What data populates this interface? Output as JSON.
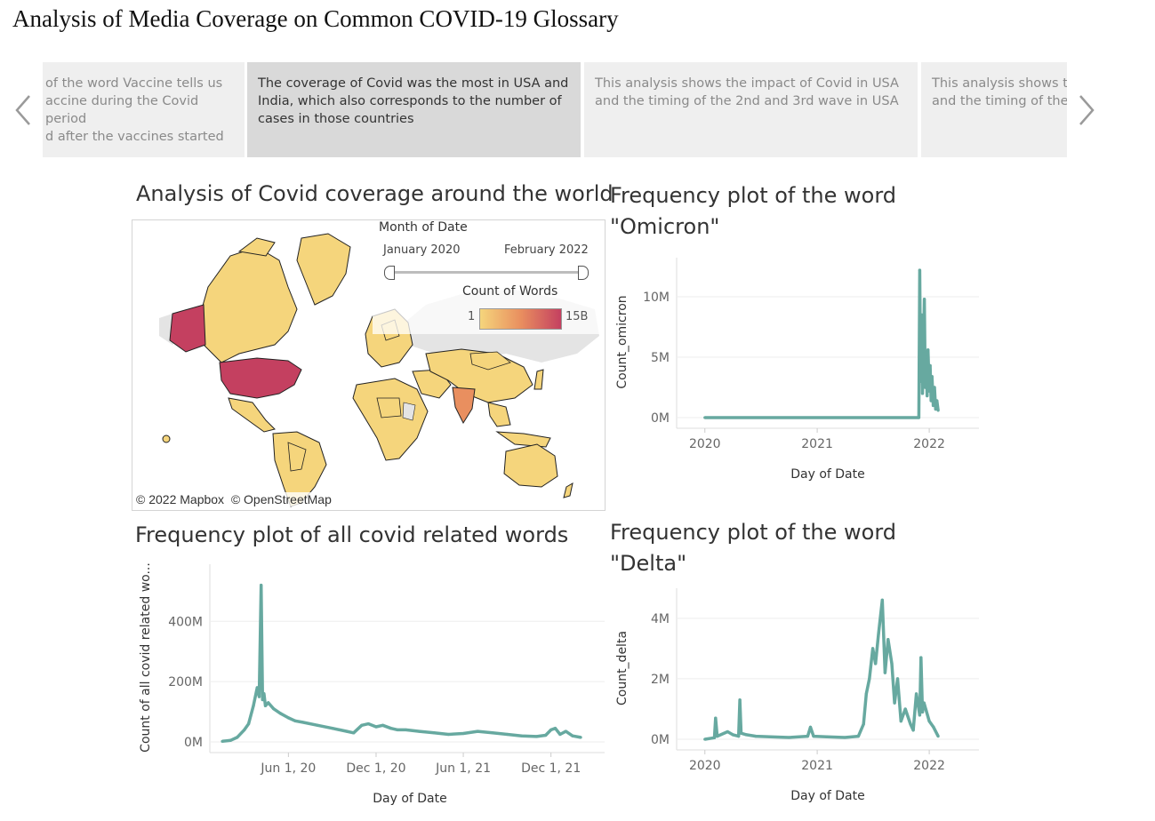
{
  "page": {
    "title": "Analysis of Media Coverage on Common COVID-19 Glossary"
  },
  "carousel": {
    "cards": [
      {
        "text": "of the word Vaccine tells us\naccine during the Covid period\nd after the vaccines started"
      },
      {
        "text": "The coverage of Covid was the most in USA and\nIndia, which also corresponds to the number of\ncases in those countries"
      },
      {
        "text": "This analysis shows the impact of Covid in USA\nand the timing of the 2nd and 3rd wave in USA"
      },
      {
        "text": "This analysis shows th\nand the timing of the"
      }
    ],
    "prev_icon": "chevron-left-icon",
    "next_icon": "chevron-right-icon"
  },
  "map_panel": {
    "title": "Analysis of Covid coverage around the world",
    "filter_label": "Month of Date",
    "range_start": "January 2020",
    "range_end": "February 2022",
    "legend_title": "Count of Words",
    "legend_min": "1",
    "legend_max": "15B",
    "attribution": "© 2022 Mapbox  © OpenStreetMap",
    "colors": {
      "low": "#f5d57c",
      "mid": "#e98f5f",
      "high": "#c44060",
      "no_data": "#e4e4e4"
    }
  },
  "omicron_panel": {
    "title": "Frequency plot of the word\n\"Omicron\"",
    "chart_data": {
      "type": "line",
      "title": "Frequency plot of the word \"Omicron\"",
      "xlabel": "Day of Date",
      "ylabel": "Count_omicron",
      "x_ticks": [
        "2020",
        "2021",
        "2022"
      ],
      "y_ticks": [
        "0M",
        "5M",
        "10M"
      ],
      "ylim": [
        0,
        12500000
      ],
      "xlim": [
        "2019-10-01",
        "2022-04-15"
      ],
      "color": "#67a9a0",
      "x": [
        "2020-01-01",
        "2021-11-25",
        "2021-11-28",
        "2021-12-01",
        "2021-12-04",
        "2021-12-07",
        "2021-12-10",
        "2021-12-13",
        "2021-12-16",
        "2021-12-19",
        "2021-12-22",
        "2021-12-25",
        "2021-12-28",
        "2022-01-01",
        "2022-01-04",
        "2022-01-07",
        "2022-01-10",
        "2022-01-14",
        "2022-01-18",
        "2022-01-22",
        "2022-01-26",
        "2022-01-30"
      ],
      "values": [
        0,
        0,
        0,
        12200000,
        3000000,
        8500000,
        2000000,
        5500000,
        9800000,
        2500000,
        5000000,
        1800000,
        5600000,
        2200000,
        4300000,
        1400000,
        3400000,
        1000000,
        2500000,
        700000,
        1400000,
        600000
      ]
    }
  },
  "all_words_panel": {
    "title": "Frequency plot of all covid related words",
    "chart_data": {
      "type": "line",
      "title": "Frequency plot of all covid related words",
      "xlabel": "Day of Date",
      "ylabel": "Count of all covid related wo...",
      "x_ticks": [
        "Jun 1, 20",
        "Dec 1, 20",
        "Jun 1, 21",
        "Dec 1, 21"
      ],
      "y_ticks": [
        "0M",
        "200M",
        "400M"
      ],
      "ylim": [
        0,
        560000000
      ],
      "xlim": [
        "2019-12-20",
        "2022-02-25"
      ],
      "color": "#67a9a0",
      "x": [
        "2020-01-15",
        "2020-02-01",
        "2020-02-15",
        "2020-03-01",
        "2020-03-10",
        "2020-03-20",
        "2020-03-28",
        "2020-04-01",
        "2020-04-05",
        "2020-04-08",
        "2020-04-11",
        "2020-04-14",
        "2020-04-20",
        "2020-05-01",
        "2020-05-15",
        "2020-06-01",
        "2020-06-15",
        "2020-07-01",
        "2020-08-01",
        "2020-09-01",
        "2020-10-01",
        "2020-10-15",
        "2020-11-01",
        "2020-11-15",
        "2020-12-01",
        "2020-12-15",
        "2021-01-01",
        "2021-01-15",
        "2021-02-01",
        "2021-03-01",
        "2021-04-01",
        "2021-05-01",
        "2021-06-01",
        "2021-07-01",
        "2021-08-01",
        "2021-09-01",
        "2021-10-01",
        "2021-11-01",
        "2021-11-20",
        "2021-12-01",
        "2021-12-10",
        "2021-12-20",
        "2022-01-01",
        "2022-01-15",
        "2022-02-01"
      ],
      "values": [
        2000000,
        5000000,
        15000000,
        40000000,
        60000000,
        120000000,
        180000000,
        150000000,
        520000000,
        140000000,
        160000000,
        120000000,
        130000000,
        110000000,
        95000000,
        80000000,
        70000000,
        65000000,
        55000000,
        45000000,
        35000000,
        30000000,
        55000000,
        60000000,
        50000000,
        55000000,
        45000000,
        40000000,
        40000000,
        35000000,
        30000000,
        25000000,
        28000000,
        35000000,
        30000000,
        25000000,
        20000000,
        18000000,
        22000000,
        40000000,
        45000000,
        25000000,
        35000000,
        20000000,
        15000000
      ]
    }
  },
  "delta_panel": {
    "title": "Frequency plot of the word\n\"Delta\"",
    "chart_data": {
      "type": "line",
      "title": "Frequency plot of the word \"Delta\"",
      "xlabel": "Day of Date",
      "ylabel": "Count_delta",
      "x_ticks": [
        "2020",
        "2021",
        "2022"
      ],
      "y_ticks": [
        "0M",
        "2M",
        "4M"
      ],
      "ylim": [
        0,
        4700000
      ],
      "xlim": [
        "2019-10-01",
        "2022-04-15"
      ],
      "color": "#67a9a0",
      "x": [
        "2020-01-01",
        "2020-02-01",
        "2020-02-05",
        "2020-02-10",
        "2020-03-15",
        "2020-04-01",
        "2020-04-20",
        "2020-04-24",
        "2020-04-28",
        "2020-05-15",
        "2020-06-15",
        "2020-08-01",
        "2020-10-01",
        "2020-12-01",
        "2020-12-10",
        "2020-12-20",
        "2021-02-01",
        "2021-04-01",
        "2021-05-15",
        "2021-06-01",
        "2021-06-10",
        "2021-06-20",
        "2021-07-01",
        "2021-07-10",
        "2021-07-20",
        "2021-08-01",
        "2021-08-10",
        "2021-08-20",
        "2021-09-01",
        "2021-09-10",
        "2021-09-20",
        "2021-10-01",
        "2021-10-15",
        "2021-11-01",
        "2021-11-10",
        "2021-11-20",
        "2021-12-01",
        "2021-12-05",
        "2021-12-10",
        "2021-12-15",
        "2022-01-01",
        "2022-01-15",
        "2022-01-30"
      ],
      "values": [
        0,
        50000,
        700000,
        100000,
        250000,
        150000,
        100000,
        1300000,
        200000,
        150000,
        100000,
        80000,
        60000,
        100000,
        400000,
        100000,
        80000,
        60000,
        100000,
        500000,
        1500000,
        2000000,
        3000000,
        2500000,
        3500000,
        4600000,
        2200000,
        3300000,
        2500000,
        1200000,
        2000000,
        600000,
        1000000,
        500000,
        300000,
        1500000,
        800000,
        2700000,
        900000,
        1200000,
        600000,
        400000,
        100000
      ]
    }
  }
}
